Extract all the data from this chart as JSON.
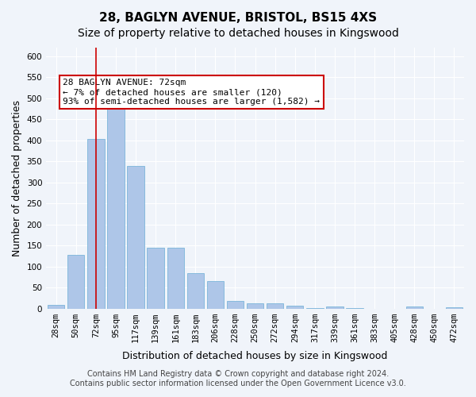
{
  "title": "28, BAGLYN AVENUE, BRISTOL, BS15 4XS",
  "subtitle": "Size of property relative to detached houses in Kingswood",
  "xlabel": "Distribution of detached houses by size in Kingswood",
  "ylabel": "Number of detached properties",
  "bin_labels": [
    "28sqm",
    "50sqm",
    "72sqm",
    "95sqm",
    "117sqm",
    "139sqm",
    "161sqm",
    "183sqm",
    "206sqm",
    "228sqm",
    "250sqm",
    "272sqm",
    "294sqm",
    "317sqm",
    "339sqm",
    "361sqm",
    "383sqm",
    "405sqm",
    "428sqm",
    "450sqm",
    "472sqm"
  ],
  "bar_values": [
    8,
    127,
    403,
    475,
    338,
    145,
    145,
    84,
    65,
    18,
    12,
    13,
    7,
    1,
    4,
    1,
    0,
    0,
    4,
    0,
    3
  ],
  "bar_color": "#aec6e8",
  "bar_edge_color": "#6aaed6",
  "highlight_bar_index": 2,
  "highlight_line_color": "#cc0000",
  "annotation_text": "28 BAGLYN AVENUE: 72sqm\n← 7% of detached houses are smaller (120)\n93% of semi-detached houses are larger (1,582) →",
  "annotation_box_color": "#ffffff",
  "annotation_box_edge_color": "#cc0000",
  "ylim": [
    0,
    620
  ],
  "yticks": [
    0,
    50,
    100,
    150,
    200,
    250,
    300,
    350,
    400,
    450,
    500,
    550,
    600
  ],
  "footer_line1": "Contains HM Land Registry data © Crown copyright and database right 2024.",
  "footer_line2": "Contains public sector information licensed under the Open Government Licence v3.0.",
  "background_color": "#f0f4fa",
  "grid_color": "#ffffff",
  "title_fontsize": 11,
  "subtitle_fontsize": 10,
  "axis_label_fontsize": 9,
  "tick_fontsize": 7.5,
  "footer_fontsize": 7
}
